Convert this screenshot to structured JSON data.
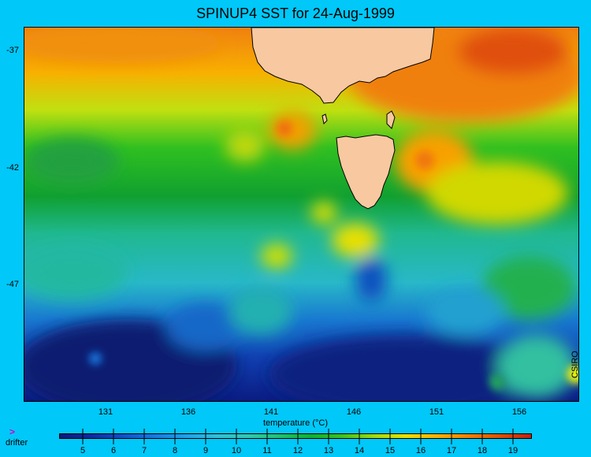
{
  "title": "SPINUP4 SST for 24-Aug-1999",
  "map": {
    "lat_labels": [
      "-37",
      "-42",
      "-47"
    ],
    "lon_labels": [
      "131",
      "136",
      "141",
      "146",
      "151",
      "156"
    ],
    "land_color": "#f8c8a0"
  },
  "credit": "CSIRO",
  "colorbar": {
    "title": "temperature (°C)",
    "tick_labels": [
      "5",
      "6",
      "7",
      "8",
      "9",
      "10",
      "11",
      "12",
      "13",
      "14",
      "15",
      "16",
      "17",
      "18",
      "19"
    ],
    "colors": [
      "#0a1a7a",
      "#0d2aa0",
      "#1050c8",
      "#1878e0",
      "#20a0e8",
      "#30c0d8",
      "#30c8b0",
      "#20c070",
      "#10b030",
      "#40c020",
      "#a0d810",
      "#e8e000",
      "#f8b000",
      "#f08000",
      "#e05000",
      "#c02010"
    ]
  },
  "legend": {
    "marker": ">",
    "label": "drifter",
    "marker_color": "#d000d0"
  }
}
